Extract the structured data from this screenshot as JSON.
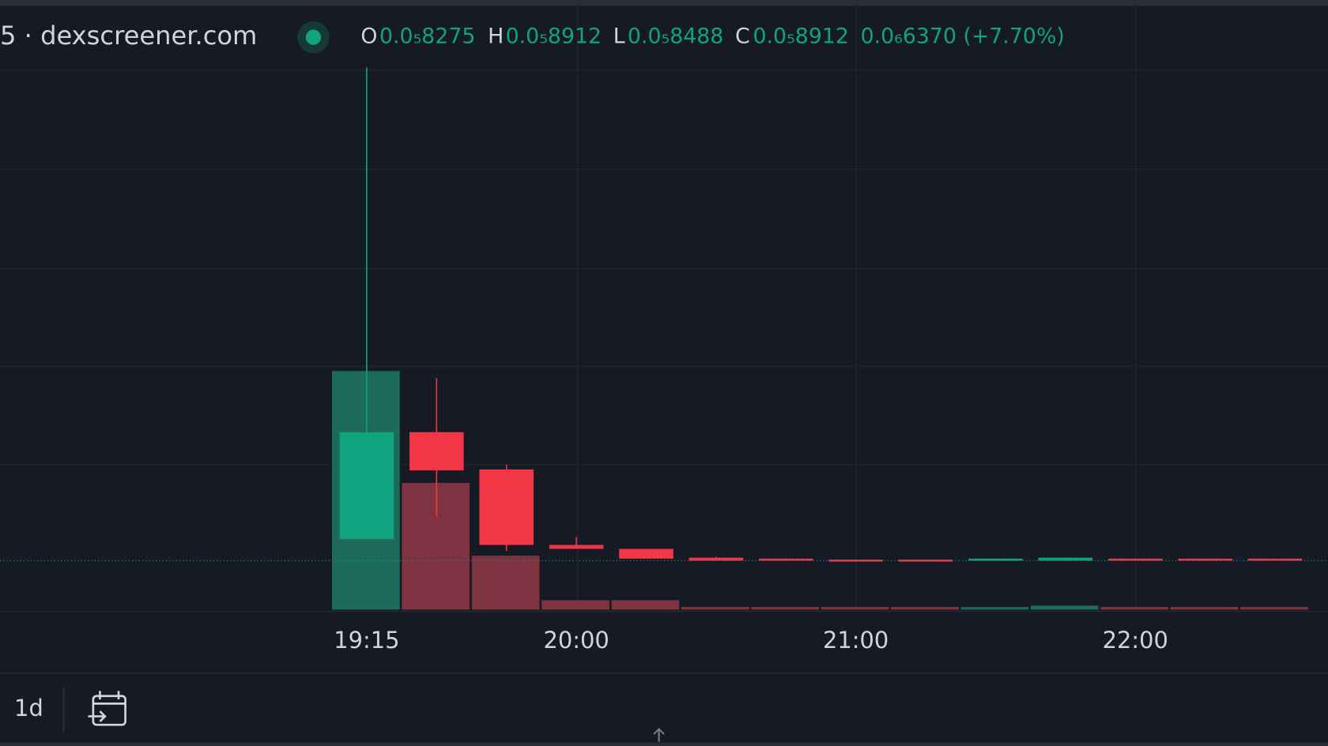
{
  "header": {
    "symbol": "5 · dexscreener.com",
    "open_label": "O",
    "open": "0.0₅8275",
    "high_label": "H",
    "high": "0.0₅8912",
    "low_label": "L",
    "low": "0.0₅8488",
    "close_label": "C",
    "close": "0.0₅8912",
    "change": "0.0₆6370 (+7.70%)"
  },
  "chart_data": {
    "type": "candlestick",
    "x": [
      "19:15",
      null,
      null,
      "20:00",
      null,
      null,
      null,
      "21:00",
      null,
      null,
      null,
      "22:00",
      null,
      null
    ],
    "open": [
      9.22,
      10.31,
      9.93,
      9.16,
      9.12,
      9.03,
      9.02,
      9.01,
      9.01,
      9.0,
      9.0,
      9.02,
      9.02,
      9.02
    ],
    "high": [
      14.03,
      10.86,
      9.98,
      9.24,
      9.12,
      9.04,
      9.02,
      9.01,
      9.01,
      9.02,
      9.03,
      9.02,
      9.02,
      9.02
    ],
    "low": [
      9.22,
      9.45,
      9.1,
      9.12,
      9.02,
      9.0,
      9.0,
      8.99,
      8.99,
      9.0,
      9.0,
      9.0,
      9.0,
      9.0
    ],
    "close": [
      10.31,
      9.92,
      9.16,
      9.12,
      9.02,
      9.0,
      9.0,
      8.99,
      8.99,
      9.02,
      9.03,
      9.0,
      9.0,
      9.0
    ],
    "volume": [
      177,
      94,
      40,
      7,
      7,
      2,
      2,
      2,
      2,
      2,
      3,
      2,
      2,
      2
    ],
    "ylim": [
      8.5,
      14.0
    ],
    "volume_lim": [
      0,
      400
    ],
    "up_color": "#0fa37f",
    "down_color": "#f23645",
    "volume_up_color": "#1b6b58",
    "volume_down_color": "#7e3340"
  },
  "footer": {
    "range": "1d"
  }
}
